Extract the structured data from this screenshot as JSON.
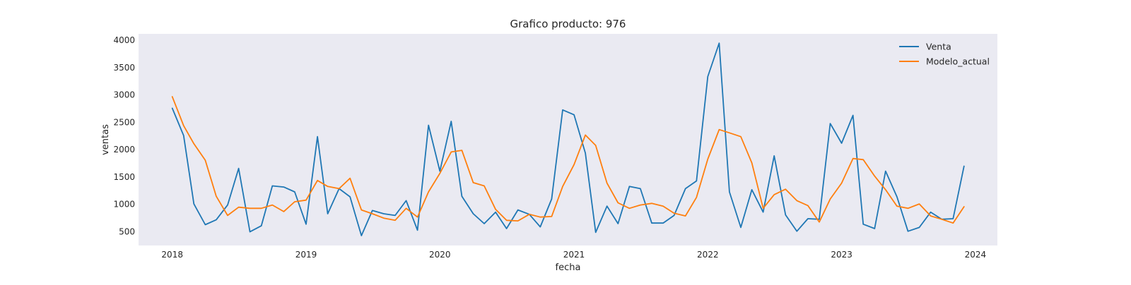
{
  "chart_data": {
    "type": "line",
    "title": "Grafico producto: 976",
    "xlabel": "fecha",
    "ylabel": "ventas",
    "x_ticks": [
      "2018",
      "2019",
      "2020",
      "2021",
      "2022",
      "2023",
      "2024"
    ],
    "y_ticks": [
      500,
      1000,
      1500,
      2000,
      2500,
      3000,
      3500,
      4000
    ],
    "xlim": [
      "2017-10-01",
      "2024-03-01"
    ],
    "ylim": [
      240,
      4110
    ],
    "grid": false,
    "legend_position": "top-right",
    "background": "#eaeaf2",
    "x": [
      "2018-01",
      "2018-02",
      "2018-03",
      "2018-04",
      "2018-05",
      "2018-06",
      "2018-07",
      "2018-08",
      "2018-09",
      "2018-10",
      "2018-11",
      "2018-12",
      "2019-01",
      "2019-02",
      "2019-03",
      "2019-04",
      "2019-05",
      "2019-06",
      "2019-07",
      "2019-08",
      "2019-09",
      "2019-10",
      "2019-11",
      "2019-12",
      "2020-01",
      "2020-02",
      "2020-03",
      "2020-04",
      "2020-05",
      "2020-06",
      "2020-07",
      "2020-08",
      "2020-09",
      "2020-10",
      "2020-11",
      "2020-12",
      "2021-01",
      "2021-02",
      "2021-03",
      "2021-04",
      "2021-05",
      "2021-06",
      "2021-07",
      "2021-08",
      "2021-09",
      "2021-10",
      "2021-11",
      "2021-12",
      "2022-01",
      "2022-02",
      "2022-03",
      "2022-04",
      "2022-05",
      "2022-06",
      "2022-07",
      "2022-08",
      "2022-09",
      "2022-10",
      "2022-11",
      "2022-12",
      "2023-01",
      "2023-02",
      "2023-03",
      "2023-04",
      "2023-05",
      "2023-06",
      "2023-07",
      "2023-08",
      "2023-09",
      "2023-10",
      "2023-11",
      "2023-12"
    ],
    "series": [
      {
        "name": "Venta",
        "color": "#1f77b4",
        "values": [
          2750,
          2250,
          1000,
          620,
          710,
          980,
          1650,
          490,
          600,
          1330,
          1310,
          1220,
          630,
          2230,
          820,
          1280,
          1130,
          420,
          880,
          820,
          790,
          1060,
          520,
          2440,
          1600,
          2510,
          1140,
          820,
          640,
          850,
          550,
          890,
          810,
          580,
          1090,
          2720,
          2630,
          1930,
          480,
          960,
          640,
          1320,
          1280,
          650,
          650,
          790,
          1280,
          1420,
          3330,
          3940,
          1220,
          570,
          1260,
          850,
          1880,
          800,
          500,
          730,
          720,
          2470,
          2110,
          2620,
          630,
          550,
          1600,
          1130,
          500,
          570,
          850,
          720,
          730,
          1690
        ]
      },
      {
        "name": "Modelo_actual",
        "color": "#ff7f0e",
        "values": [
          2960,
          2430,
          2100,
          1800,
          1140,
          790,
          940,
          920,
          920,
          980,
          860,
          1040,
          1070,
          1430,
          1320,
          1280,
          1470,
          890,
          820,
          740,
          700,
          920,
          760,
          1220,
          1560,
          1950,
          1980,
          1390,
          1330,
          900,
          700,
          690,
          810,
          760,
          770,
          1320,
          1720,
          2260,
          2070,
          1380,
          1020,
          920,
          980,
          1010,
          960,
          830,
          780,
          1120,
          1820,
          2360,
          2300,
          2230,
          1750,
          920,
          1170,
          1270,
          1060,
          970,
          670,
          1090,
          1380,
          1830,
          1810,
          1510,
          1260,
          960,
          920,
          1000,
          780,
          720,
          650,
          950
        ]
      }
    ]
  }
}
